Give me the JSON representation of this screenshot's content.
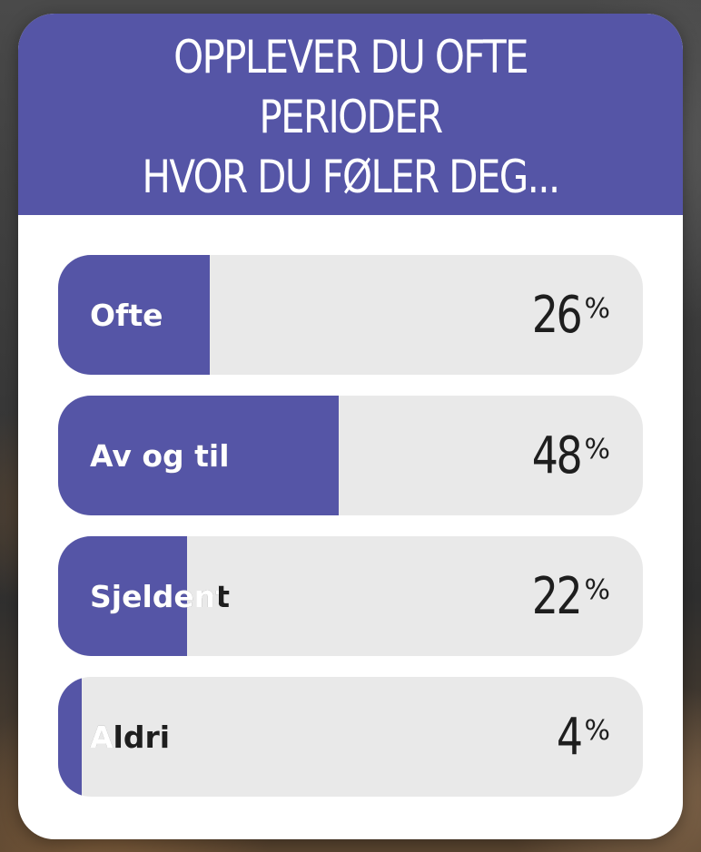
{
  "poll": {
    "question": "OPPLEVER DU OFTE PERIODER\nHVOR DU FØLER DEG...",
    "options": [
      {
        "label": "Ofte",
        "percent": 26,
        "percent_text": "26",
        "percent_sign": "%"
      },
      {
        "label": "Av og til",
        "percent": 48,
        "percent_text": "48",
        "percent_sign": "%"
      },
      {
        "label": "Sjeldent",
        "percent": 22,
        "percent_text": "22",
        "percent_sign": "%"
      },
      {
        "label": "Aldri",
        "percent": 4,
        "percent_text": "4",
        "percent_sign": "%"
      }
    ]
  },
  "colors": {
    "accent": "#5555a6",
    "track": "#e9e9e9",
    "card": "#ffffff",
    "text_dark": "#1e1e1e"
  }
}
